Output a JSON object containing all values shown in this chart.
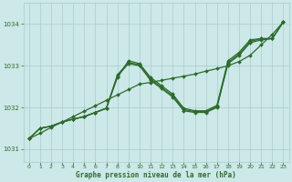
{
  "title": "Graphe pression niveau de la mer (hPa)",
  "background_color": "#cce8e8",
  "grid_color": "#aacccc",
  "line_color": "#2d6b2d",
  "x_min": -0.5,
  "x_max": 23.5,
  "y_min": 1030.7,
  "y_max": 1034.5,
  "yticks": [
    1031,
    1032,
    1033,
    1034
  ],
  "xticks": [
    0,
    1,
    2,
    3,
    4,
    5,
    6,
    7,
    8,
    9,
    10,
    11,
    12,
    13,
    14,
    15,
    16,
    17,
    18,
    19,
    20,
    21,
    22,
    23
  ],
  "line_straight": [
    1031.25,
    1031.38,
    1031.52,
    1031.65,
    1031.78,
    1031.91,
    1032.04,
    1032.17,
    1032.3,
    1032.43,
    1032.56,
    1032.6,
    1032.65,
    1032.7,
    1032.75,
    1032.8,
    1032.87,
    1032.93,
    1033.0,
    1033.1,
    1033.25,
    1033.5,
    1033.75,
    1034.05
  ],
  "line_a": [
    1031.25,
    1031.5,
    1031.55,
    1031.65,
    1031.72,
    1031.78,
    1031.88,
    1031.98,
    1032.75,
    1033.05,
    1033.0,
    1032.65,
    1032.45,
    1032.25,
    1031.92,
    1031.88,
    1031.88,
    1032.0,
    1033.05,
    1033.25,
    1033.55,
    1033.62,
    1033.65,
    1034.05
  ],
  "line_b": [
    1031.25,
    1031.5,
    1031.55,
    1031.65,
    1031.72,
    1031.78,
    1031.88,
    1031.98,
    1032.78,
    1033.08,
    1033.02,
    1032.68,
    1032.48,
    1032.28,
    1031.95,
    1031.9,
    1031.9,
    1032.02,
    1033.08,
    1033.28,
    1033.58,
    1033.65,
    1033.65,
    1034.05
  ],
  "line_c": [
    1031.25,
    1031.5,
    1031.55,
    1031.65,
    1031.72,
    1031.78,
    1031.88,
    1031.98,
    1032.72,
    1033.12,
    1033.05,
    1032.72,
    1032.52,
    1032.32,
    1031.98,
    1031.92,
    1031.92,
    1032.05,
    1033.12,
    1033.32,
    1033.62,
    1033.65,
    1033.65,
    1034.05
  ]
}
